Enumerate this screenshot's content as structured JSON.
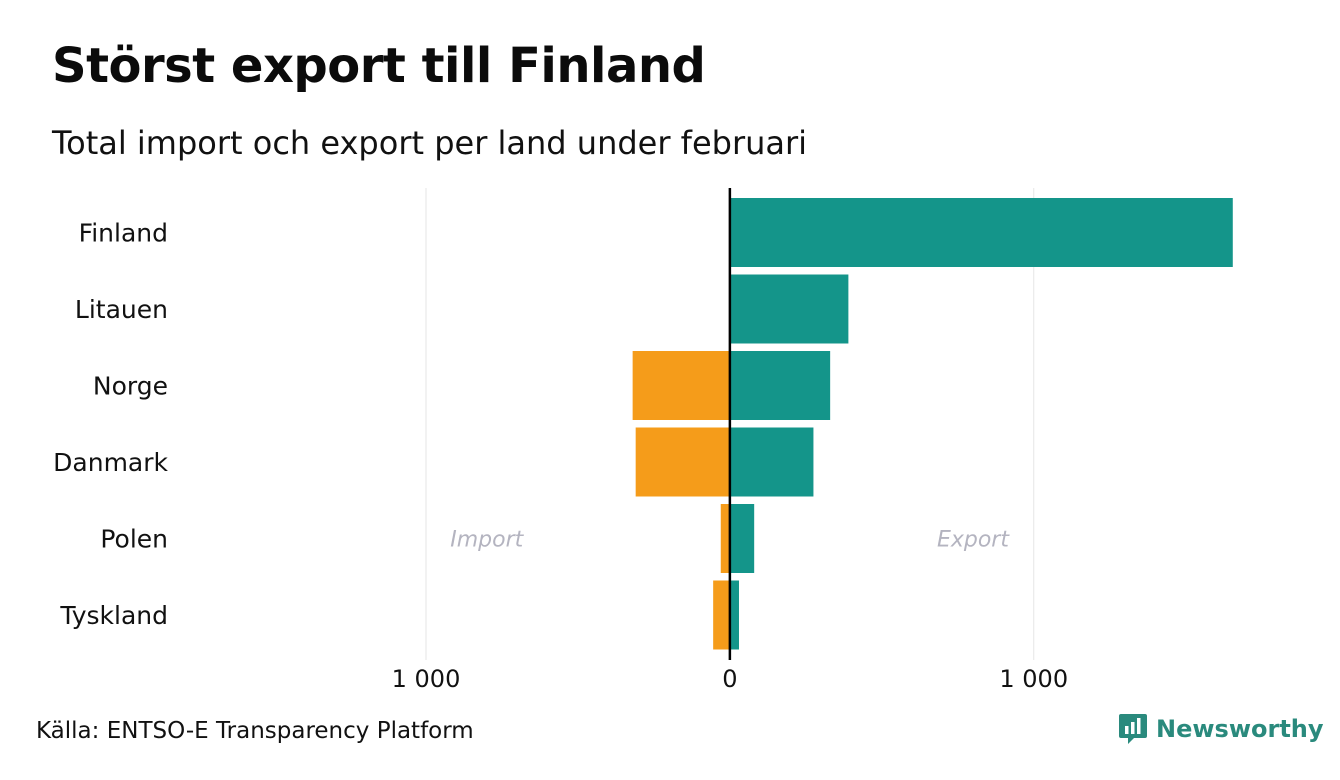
{
  "title": "Störst export till Finland",
  "subtitle": "Total import och export per land under februari",
  "source": "Källa: ENTSO-E Transparency Platform",
  "brand": {
    "name": "Newsworthy",
    "icon": "newsworthy-logo-icon"
  },
  "colors": {
    "import": "#f59c1a",
    "export": "#14958a",
    "zero_line": "#000000",
    "grid": "#e6e6e6",
    "annotation": "#b4b4c0"
  },
  "chart_data": {
    "type": "bar",
    "orientation": "horizontal",
    "categories": [
      "Finland",
      "Litauen",
      "Norge",
      "Danmark",
      "Polen",
      "Tyskland"
    ],
    "series": [
      {
        "name": "Import",
        "values": [
          0,
          0,
          -320,
          -310,
          -30,
          -55
        ]
      },
      {
        "name": "Export",
        "values": [
          1655,
          390,
          330,
          275,
          80,
          30
        ]
      }
    ],
    "xlim": [
      -1000,
      1840
    ],
    "xticks": [
      -1000,
      0,
      1000
    ],
    "xtick_labels": [
      "1 000",
      "0",
      "1 000"
    ],
    "annotations": {
      "import_label": "Import",
      "export_label": "Export"
    }
  }
}
